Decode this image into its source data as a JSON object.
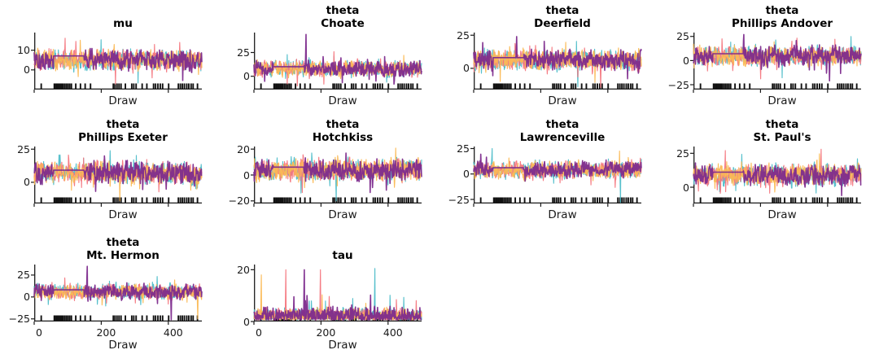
{
  "figure": {
    "background": "#ffffff",
    "kind": "mcmc-trace-plot-grid",
    "grid": {
      "columns": 4,
      "rows": 3,
      "num_panels": 10
    }
  },
  "colors": {
    "axis": "#1a1a1a",
    "tick_label": "#1a1a1a",
    "rug": "#111111",
    "chain1": "#4ebdc9",
    "chain2": "#f4757d",
    "chain3": "#fbb954",
    "chain4": "#7d2b8d"
  },
  "chart_data": {
    "type": "line",
    "x": {
      "label": "Draw",
      "range": [
        0,
        500
      ],
      "tick_values": [
        0,
        200,
        400
      ],
      "tick_labels": [
        "0",
        "200",
        "400"
      ]
    },
    "chains": [
      {
        "name": "chain-1",
        "color": "#4ebdc9"
      },
      {
        "name": "chain-2",
        "color": "#f4757d"
      },
      {
        "name": "chain-3",
        "color": "#fbb954"
      },
      {
        "name": "chain-4",
        "color": "#7d2b8d"
      }
    ],
    "divergence_draws": [
      21,
      60,
      63,
      67,
      70,
      74,
      78,
      82,
      86,
      91,
      96,
      101,
      106,
      111,
      124,
      138,
      152,
      168,
      236,
      241,
      247,
      253,
      259,
      272,
      291,
      297,
      304,
      322,
      336,
      356,
      362,
      369,
      376,
      383,
      401,
      430,
      436,
      442,
      448,
      455,
      461,
      468,
      474,
      487
    ],
    "panels": [
      {
        "id": "mu",
        "title_lines": [
          "mu"
        ],
        "ylim": [
          -10,
          19
        ],
        "ytick_values": [
          0,
          10
        ],
        "ytick_labels": [
          "0",
          "10"
        ],
        "mean": 5,
        "sd": 3.8,
        "positive": false,
        "flat": true,
        "seed": 3,
        "spikes": [],
        "show_x_tick_labels": false
      },
      {
        "id": "theta-choate",
        "title_lines": [
          "theta",
          "Choate"
        ],
        "ylim": [
          -14,
          46
        ],
        "ytick_values": [
          0,
          25
        ],
        "ytick_labels": [
          "0",
          "25"
        ],
        "mean": 8,
        "sd": 6,
        "positive": false,
        "flat": true,
        "seed": 11,
        "spikes": [
          {
            "c": 3,
            "d": 155,
            "v": 44
          }
        ],
        "show_x_tick_labels": false
      },
      {
        "id": "theta-deerfield",
        "title_lines": [
          "theta",
          "Deerfield"
        ],
        "ylim": [
          -16,
          27
        ],
        "ytick_values": [
          0,
          25
        ],
        "ytick_labels": [
          "0",
          "25"
        ],
        "mean": 6,
        "sd": 5.5,
        "positive": false,
        "flat": true,
        "seed": 17,
        "spikes": [
          {
            "c": 3,
            "d": 128,
            "v": 24
          },
          {
            "c": 0,
            "d": 310,
            "v": -14
          }
        ],
        "show_x_tick_labels": false
      },
      {
        "id": "theta-phillips-andover",
        "title_lines": [
          "theta",
          "Phillips Andover"
        ],
        "ylim": [
          -30,
          29
        ],
        "ytick_values": [
          -25,
          0,
          25
        ],
        "ytick_labels": [
          "−25",
          "0",
          "25"
        ],
        "mean": 5,
        "sd": 7,
        "positive": false,
        "flat": true,
        "seed": 23,
        "spikes": [
          {
            "c": 3,
            "d": 150,
            "v": 27
          },
          {
            "c": 3,
            "d": 405,
            "v": -21
          },
          {
            "c": 1,
            "d": 200,
            "v": -19
          }
        ],
        "show_x_tick_labels": false
      },
      {
        "id": "theta-phillips-exeter",
        "title_lines": [
          "theta",
          "Phillips Exeter"
        ],
        "ylim": [
          -16,
          27
        ],
        "ytick_values": [
          0,
          25
        ],
        "ytick_labels": [
          "0",
          "25"
        ],
        "mean": 7,
        "sd": 6,
        "positive": false,
        "flat": true,
        "seed": 29,
        "spikes": [
          {
            "c": 2,
            "d": 255,
            "v": -14
          }
        ],
        "show_x_tick_labels": false
      },
      {
        "id": "theta-hotchkiss",
        "title_lines": [
          "theta",
          "Hotchkiss"
        ],
        "ylim": [
          -22,
          22
        ],
        "ytick_values": [
          -20,
          0,
          20
        ],
        "ytick_labels": [
          "−20",
          "0",
          "20"
        ],
        "mean": 4,
        "sd": 6,
        "positive": false,
        "flat": true,
        "seed": 31,
        "spikes": [
          {
            "c": 0,
            "d": 245,
            "v": -20
          }
        ],
        "show_x_tick_labels": false
      },
      {
        "id": "theta-lawrenceville",
        "title_lines": [
          "theta",
          "Lawrenceville"
        ],
        "ylim": [
          -29,
          27
        ],
        "ytick_values": [
          -25,
          0,
          25
        ],
        "ytick_labels": [
          "−25",
          "0",
          "25"
        ],
        "mean": 4,
        "sd": 6,
        "positive": false,
        "flat": true,
        "seed": 37,
        "spikes": [
          {
            "c": 0,
            "d": 55,
            "v": 25
          },
          {
            "c": 0,
            "d": 437,
            "v": -28
          }
        ],
        "show_x_tick_labels": false
      },
      {
        "id": "theta-st-pauls",
        "title_lines": [
          "theta",
          "St. Paul's"
        ],
        "ylim": [
          -12,
          30
        ],
        "ytick_values": [
          0,
          25
        ],
        "ytick_labels": [
          "0",
          "25"
        ],
        "mean": 9,
        "sd": 5.5,
        "positive": false,
        "flat": true,
        "seed": 41,
        "spikes": [
          {
            "c": 1,
            "d": 95,
            "v": 27
          },
          {
            "c": 1,
            "d": 380,
            "v": 28
          }
        ],
        "show_x_tick_labels": false
      },
      {
        "id": "theta-mt-hermon",
        "title_lines": [
          "theta",
          "Mt. Hermon"
        ],
        "ylim": [
          -28,
          37
        ],
        "ytick_values": [
          -25,
          0,
          25
        ],
        "ytick_labels": [
          "−25",
          "0",
          "25"
        ],
        "mean": 6,
        "sd": 6,
        "positive": false,
        "flat": true,
        "seed": 43,
        "spikes": [
          {
            "c": 3,
            "d": 158,
            "v": 35
          },
          {
            "c": 3,
            "d": 408,
            "v": -26
          },
          {
            "c": 2,
            "d": 487,
            "v": -25
          }
        ],
        "show_x_tick_labels": true
      },
      {
        "id": "tau",
        "title_lines": [
          "tau"
        ],
        "ylim": [
          0,
          22
        ],
        "ytick_values": [
          0,
          20
        ],
        "ytick_labels": [
          "0",
          "20"
        ],
        "mean": 4.5,
        "sd": 3.2,
        "positive": true,
        "flat": false,
        "seed": 47,
        "spikes": [
          {
            "c": 1,
            "d": 95,
            "v": 20
          },
          {
            "c": 3,
            "d": 150,
            "v": 20
          },
          {
            "c": 1,
            "d": 198,
            "v": 20
          },
          {
            "c": 0,
            "d": 360,
            "v": 20.5
          },
          {
            "c": 2,
            "d": 22,
            "v": 18
          }
        ],
        "show_x_tick_labels": true
      }
    ]
  }
}
